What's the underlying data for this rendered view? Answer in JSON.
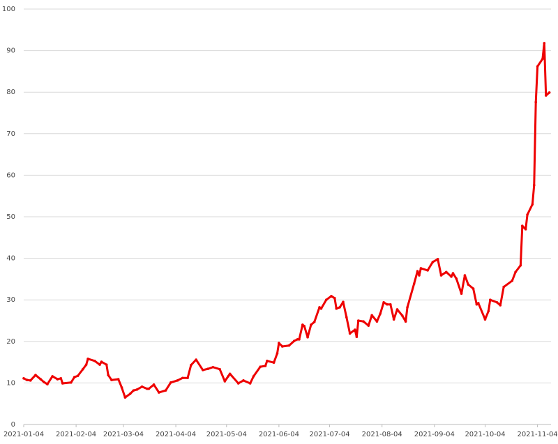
{
  "chart_data": {
    "type": "line",
    "x": [
      "2021-01-04",
      "2021-01-06",
      "2021-01-08",
      "2021-01-11",
      "2021-01-14",
      "2021-01-16",
      "2021-01-18",
      "2021-01-21",
      "2021-01-24",
      "2021-01-26",
      "2021-01-27",
      "2021-02-01",
      "2021-02-03",
      "2021-02-05",
      "2021-02-08",
      "2021-02-10",
      "2021-02-11",
      "2021-02-15",
      "2021-02-18",
      "2021-02-19",
      "2021-02-22",
      "2021-02-23",
      "2021-02-25",
      "2021-03-01",
      "2021-03-03",
      "2021-03-05",
      "2021-03-08",
      "2021-03-10",
      "2021-03-12",
      "2021-03-15",
      "2021-03-18",
      "2021-03-19",
      "2021-03-22",
      "2021-03-25",
      "2021-03-29",
      "2021-04-01",
      "2021-04-05",
      "2021-04-08",
      "2021-04-11",
      "2021-04-13",
      "2021-04-16",
      "2021-04-20",
      "2021-04-23",
      "2021-04-26",
      "2021-04-30",
      "2021-05-03",
      "2021-05-05",
      "2021-05-06",
      "2021-05-11",
      "2021-05-14",
      "2021-05-18",
      "2021-05-20",
      "2021-05-24",
      "2021-05-27",
      "2021-05-28",
      "2021-06-01",
      "2021-06-03",
      "2021-06-04",
      "2021-06-06",
      "2021-06-10",
      "2021-06-13",
      "2021-06-15",
      "2021-06-16",
      "2021-06-18",
      "2021-06-19",
      "2021-06-21",
      "2021-06-23",
      "2021-06-25",
      "2021-06-28",
      "2021-06-29",
      "2021-07-02",
      "2021-07-05",
      "2021-07-07",
      "2021-07-08",
      "2021-07-10",
      "2021-07-12",
      "2021-07-14",
      "2021-07-16",
      "2021-07-19",
      "2021-07-20",
      "2021-07-21",
      "2021-07-24",
      "2021-07-27",
      "2021-07-29",
      "2021-08-01",
      "2021-08-03",
      "2021-08-05",
      "2021-08-07",
      "2021-08-09",
      "2021-08-11",
      "2021-08-13",
      "2021-08-16",
      "2021-08-18",
      "2021-08-19",
      "2021-08-23",
      "2021-08-25",
      "2021-08-26",
      "2021-08-27",
      "2021-08-31",
      "2021-09-03",
      "2021-09-06",
      "2021-09-08",
      "2021-09-11",
      "2021-09-14",
      "2021-09-15",
      "2021-09-17",
      "2021-09-20",
      "2021-09-22",
      "2021-09-24",
      "2021-09-27",
      "2021-09-29",
      "2021-09-30",
      "2021-10-04",
      "2021-10-06",
      "2021-10-07",
      "2021-10-11",
      "2021-10-13",
      "2021-10-15",
      "2021-10-20",
      "2021-10-22",
      "2021-10-25",
      "2021-10-26",
      "2021-10-28",
      "2021-10-29",
      "2021-11-01",
      "2021-11-02",
      "2021-11-03",
      "2021-11-04",
      "2021-11-07",
      "2021-11-08",
      "2021-11-09",
      "2021-11-11"
    ],
    "series": [
      {
        "color": "#ee0000",
        "values": [
          11.1,
          10.7,
          10.6,
          11.9,
          10.9,
          10.2,
          9.7,
          11.6,
          10.9,
          11.1,
          9.9,
          10.1,
          11.4,
          11.7,
          13.3,
          14.4,
          15.8,
          15.3,
          14.4,
          15.1,
          14.4,
          11.9,
          10.7,
          10.9,
          8.9,
          6.5,
          7.4,
          8.2,
          8.4,
          9.1,
          8.6,
          8.6,
          9.6,
          7.7,
          8.2,
          10.1,
          10.6,
          11.2,
          11.2,
          14.3,
          15.6,
          13.1,
          13.4,
          13.8,
          13.3,
          10.4,
          11.6,
          12.2,
          9.9,
          10.6,
          9.9,
          11.6,
          13.9,
          14.1,
          15.3,
          14.9,
          17.1,
          19.6,
          18.8,
          19.0,
          20.1,
          20.5,
          20.5,
          24.0,
          23.7,
          21.0,
          24.0,
          24.7,
          28.2,
          27.9,
          30.0,
          30.9,
          30.4,
          27.9,
          28.2,
          29.5,
          25.8,
          21.9,
          22.8,
          21.1,
          25.0,
          24.8,
          23.8,
          26.3,
          24.8,
          26.7,
          29.4,
          28.9,
          28.9,
          25.3,
          27.7,
          26.2,
          24.8,
          28.2,
          33.9,
          36.9,
          35.9,
          37.6,
          37.1,
          39.1,
          39.8,
          35.9,
          36.7,
          35.6,
          36.4,
          35.1,
          31.5,
          35.9,
          33.7,
          32.7,
          28.9,
          29.2,
          25.3,
          27.3,
          30.0,
          29.4,
          28.7,
          33.1,
          34.6,
          36.7,
          38.3,
          47.8,
          47.0,
          50.5,
          53.0,
          57.6,
          77.6,
          86.2,
          88.0,
          91.8,
          79.2,
          79.9
        ]
      }
    ],
    "xlim": [
      "2021-01-04",
      "2021-11-12"
    ],
    "xticks": [
      "2021-01-04",
      "2021-02-04",
      "2021-03-04",
      "2021-04-04",
      "2021-05-04",
      "2021-06-04",
      "2021-07-04",
      "2021-08-04",
      "2021-09-04",
      "2021-10-04",
      "2021-11-04"
    ],
    "ylim": [
      0,
      100
    ],
    "yticks": [
      0,
      10,
      20,
      30,
      40,
      50,
      60,
      70,
      80,
      90,
      100
    ],
    "grid": true
  }
}
